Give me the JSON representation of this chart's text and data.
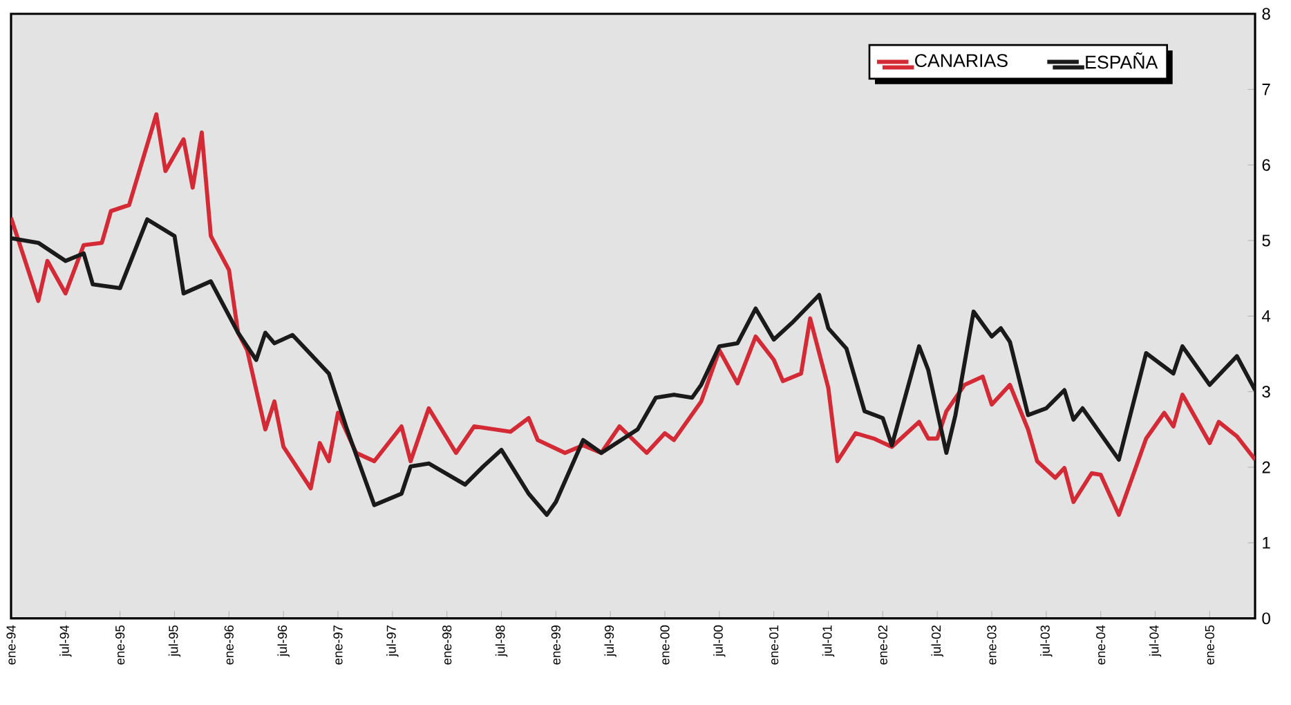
{
  "chart_data": {
    "type": "line",
    "series": [
      {
        "name": "CANARIAS",
        "color": "#d42a35",
        "x": [
          "1994-01",
          "1994-04",
          "1994-05",
          "1994-07",
          "1994-09",
          "1994-11",
          "1994-12",
          "1995-02",
          "1995-05",
          "1995-06",
          "1995-08",
          "1995-09",
          "1995-10",
          "1995-11",
          "1996-01",
          "1996-02",
          "1996-03",
          "1996-05",
          "1996-06",
          "1996-07",
          "1996-10",
          "1996-11",
          "1996-12",
          "1997-01",
          "1997-03",
          "1997-05",
          "1997-08",
          "1997-09",
          "1997-11",
          "1998-02",
          "1998-04",
          "1998-08",
          "1998-10",
          "1998-11",
          "1999-02",
          "1999-04",
          "1999-06",
          "1999-08",
          "1999-11",
          "2000-01",
          "2000-02",
          "2000-05",
          "2000-07",
          "2000-09",
          "2000-11",
          "2001-01",
          "2001-02",
          "2001-04",
          "2001-05",
          "2001-07",
          "2001-08",
          "2001-10",
          "2001-12",
          "2002-02",
          "2002-05",
          "2002-06",
          "2002-07",
          "2002-08",
          "2002-10",
          "2002-12",
          "2003-01",
          "2003-03",
          "2003-05",
          "2003-06",
          "2003-08",
          "2003-09",
          "2003-10",
          "2003-12",
          "2004-01",
          "2004-03",
          "2004-06",
          "2004-08",
          "2004-09",
          "2004-10",
          "2005-01",
          "2005-02",
          "2005-04",
          "2005-06"
        ],
        "values": [
          5.3,
          4.2,
          4.73,
          4.3,
          4.94,
          4.97,
          5.39,
          5.47,
          6.67,
          5.92,
          6.34,
          5.7,
          6.43,
          5.06,
          4.61,
          3.78,
          3.55,
          2.5,
          2.87,
          2.27,
          1.72,
          2.32,
          2.08,
          2.72,
          2.19,
          2.08,
          2.54,
          2.08,
          2.78,
          2.19,
          2.54,
          2.47,
          2.65,
          2.36,
          2.19,
          2.29,
          2.19,
          2.54,
          2.19,
          2.45,
          2.36,
          2.87,
          3.55,
          3.11,
          3.73,
          3.42,
          3.14,
          3.24,
          3.97,
          3.05,
          2.08,
          2.45,
          2.38,
          2.27,
          2.6,
          2.38,
          2.38,
          2.74,
          3.09,
          3.2,
          2.83,
          3.09,
          2.5,
          2.08,
          1.86,
          1.99,
          1.54,
          1.92,
          1.9,
          1.37,
          2.38,
          2.72,
          2.54,
          2.96,
          2.32,
          2.6,
          2.41,
          2.1
        ]
      },
      {
        "name": "ESPAÑA",
        "color": "#1a1a1a",
        "x": [
          "1994-01",
          "1994-04",
          "1994-07",
          "1994-09",
          "1994-10",
          "1995-01",
          "1995-04",
          "1995-07",
          "1995-08",
          "1995-11",
          "1996-02",
          "1996-04",
          "1996-05",
          "1996-06",
          "1996-08",
          "1996-12",
          "1997-02",
          "1997-05",
          "1997-08",
          "1997-09",
          "1997-11",
          "1998-03",
          "1998-05",
          "1998-07",
          "1998-10",
          "1998-12",
          "1999-01",
          "1999-04",
          "1999-06",
          "1999-10",
          "1999-12",
          "2000-02",
          "2000-04",
          "2000-05",
          "2000-07",
          "2000-09",
          "2000-11",
          "2001-01",
          "2001-03",
          "2001-06",
          "2001-07",
          "2001-09",
          "2001-11",
          "2002-01",
          "2002-02",
          "2002-05",
          "2002-06",
          "2002-08",
          "2002-09",
          "2002-11",
          "2003-01",
          "2003-02",
          "2003-03",
          "2003-05",
          "2003-07",
          "2003-09",
          "2003-10",
          "2003-11",
          "2004-03",
          "2004-06",
          "2004-09",
          "2004-10",
          "2005-01",
          "2005-04",
          "2005-06"
        ],
        "values": [
          5.03,
          4.97,
          4.73,
          4.83,
          4.42,
          4.37,
          5.28,
          5.06,
          4.3,
          4.46,
          3.78,
          3.42,
          3.78,
          3.64,
          3.75,
          3.24,
          2.5,
          1.5,
          1.65,
          2.01,
          2.05,
          1.77,
          2.01,
          2.23,
          1.65,
          1.37,
          1.54,
          2.36,
          2.19,
          2.5,
          2.92,
          2.96,
          2.92,
          3.09,
          3.6,
          3.64,
          4.1,
          3.69,
          3.91,
          4.28,
          3.84,
          3.57,
          2.74,
          2.65,
          2.29,
          3.6,
          3.29,
          2.19,
          2.69,
          4.06,
          3.73,
          3.84,
          3.66,
          2.69,
          2.78,
          3.02,
          2.63,
          2.78,
          2.1,
          3.51,
          3.24,
          3.6,
          3.09,
          3.47,
          3.02
        ]
      }
    ],
    "xlim": [
      "1994-01",
      "2005-06"
    ],
    "xticks": [
      {
        "value": "1994-01",
        "label": "ene-94"
      },
      {
        "value": "1994-07",
        "label": "jul-94"
      },
      {
        "value": "1995-01",
        "label": "ene-95"
      },
      {
        "value": "1995-07",
        "label": "jul-95"
      },
      {
        "value": "1996-01",
        "label": "ene-96"
      },
      {
        "value": "1996-07",
        "label": "jul-96"
      },
      {
        "value": "1997-01",
        "label": "ene-97"
      },
      {
        "value": "1997-07",
        "label": "jul-97"
      },
      {
        "value": "1998-01",
        "label": "ene-98"
      },
      {
        "value": "1998-07",
        "label": "jul-98"
      },
      {
        "value": "1999-01",
        "label": "ene-99"
      },
      {
        "value": "1999-07",
        "label": "jul-99"
      },
      {
        "value": "2000-01",
        "label": "ene-00"
      },
      {
        "value": "2000-07",
        "label": "jul-00"
      },
      {
        "value": "2001-01",
        "label": "ene-01"
      },
      {
        "value": "2001-07",
        "label": "jul-01"
      },
      {
        "value": "2002-01",
        "label": "ene-02"
      },
      {
        "value": "2002-07",
        "label": "jul-02"
      },
      {
        "value": "2003-01",
        "label": "ene-03"
      },
      {
        "value": "2003-07",
        "label": "jul-03"
      },
      {
        "value": "2004-01",
        "label": "ene-04"
      },
      {
        "value": "2004-07",
        "label": "jul-04"
      },
      {
        "value": "2005-01",
        "label": "ene-05"
      }
    ],
    "ylim": [
      0,
      8
    ],
    "yticks": [
      0,
      1,
      2,
      3,
      4,
      5,
      6,
      7,
      8
    ],
    "legend": "top right",
    "grid": false,
    "line_style": "solid",
    "marker": "none"
  }
}
